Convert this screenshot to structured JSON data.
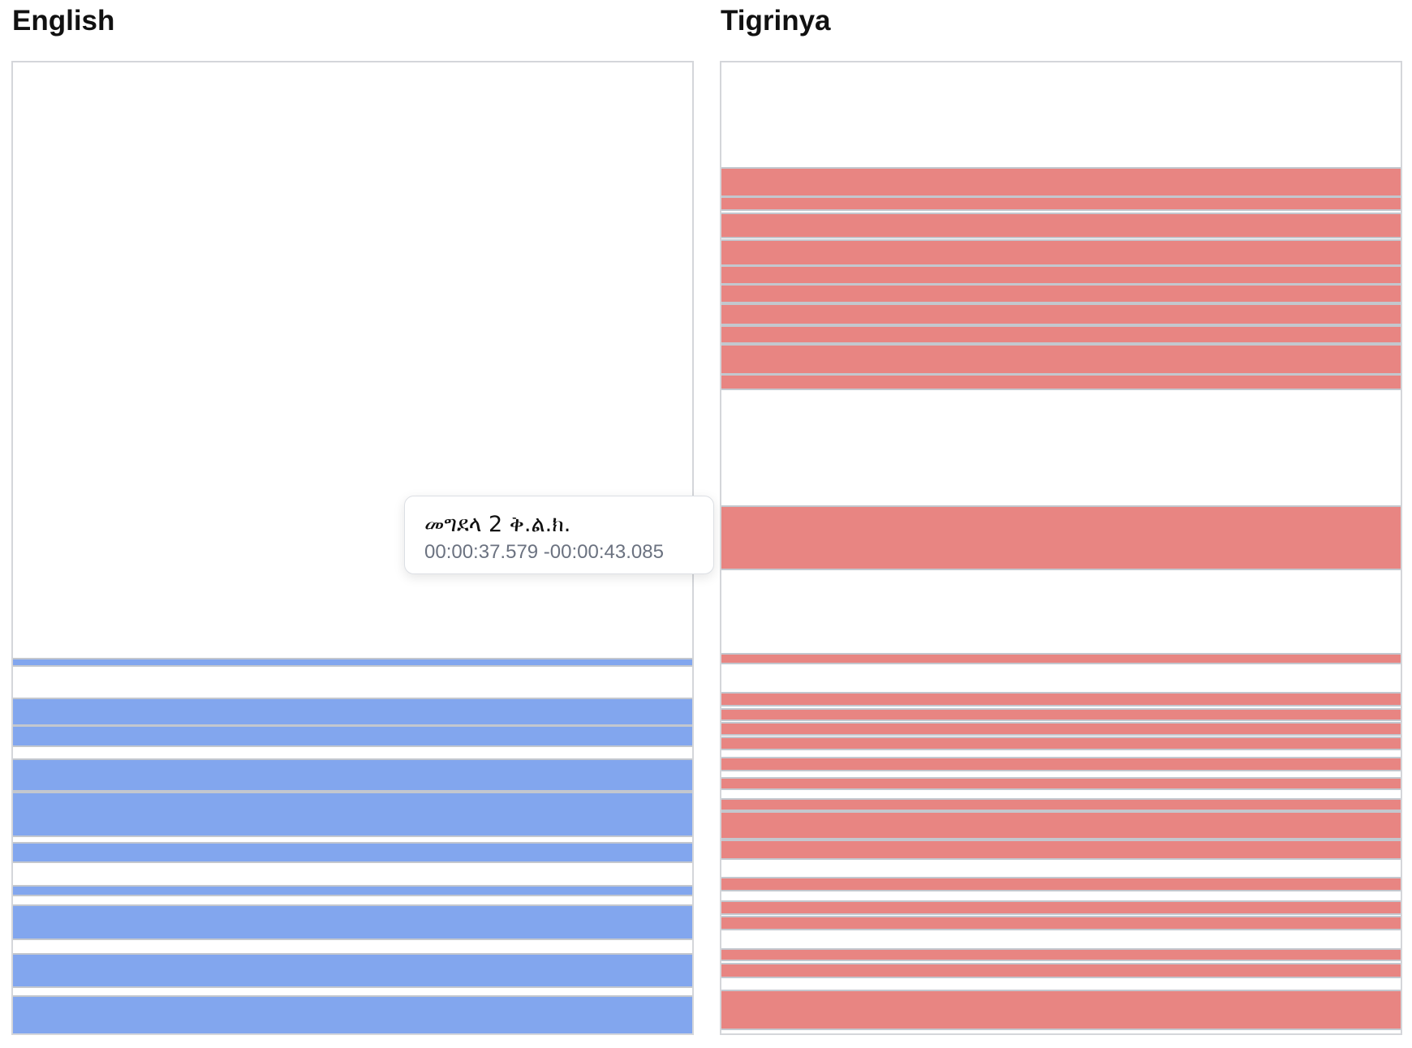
{
  "panels": {
    "english": {
      "title": "English",
      "color": "#82a6ee"
    },
    "tigrinya": {
      "title": "Tigrinya",
      "color": "#e88582"
    }
  },
  "tooltip": {
    "title": "መግደላ 2 ቅ.ል.ክ.",
    "time": "00:00:37.579 -00:00:43.085"
  }
}
